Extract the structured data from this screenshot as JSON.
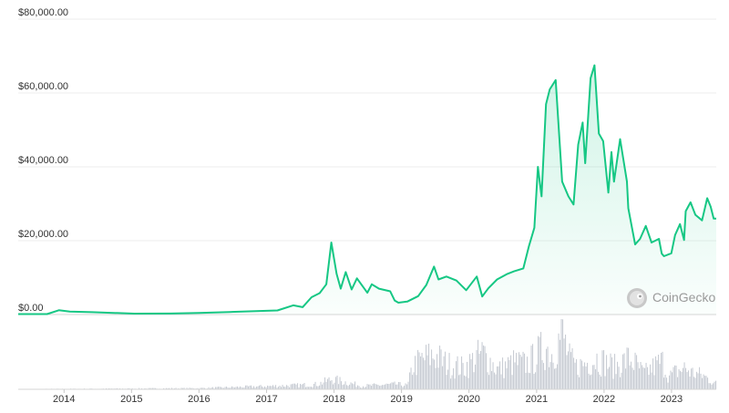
{
  "chart_data": {
    "type": "area",
    "title": "",
    "xlabel": "",
    "ylabel": "",
    "ylim": [
      0,
      80000
    ],
    "xlim": [
      "2013-04-28",
      "2023-08-31"
    ],
    "y_ticks": [
      {
        "value": 0,
        "label": "$0.00"
      },
      {
        "value": 20000,
        "label": "$20,000.00"
      },
      {
        "value": 40000,
        "label": "$40,000.00"
      },
      {
        "value": 60000,
        "label": "$60,000.00"
      },
      {
        "value": 80000,
        "label": "$80,000.00"
      }
    ],
    "x_ticks": [
      "2014",
      "2015",
      "2016",
      "2017",
      "2018",
      "2019",
      "2020",
      "2021",
      "2022",
      "2023"
    ],
    "grid": "horizontal",
    "legend": "none",
    "colors": {
      "line": "#16c784",
      "fill": "#16c784",
      "volume": "#c9cdd4",
      "grid": "#eeeeee"
    },
    "series": [
      {
        "x": [
          "2013-04-28",
          "2013-10-01",
          "2013-12-04",
          "2014-02-01",
          "2014-06-01",
          "2015-01-15",
          "2015-08-01",
          "2016-01-01",
          "2016-06-15",
          "2017-01-01",
          "2017-03-01",
          "2017-05-25",
          "2017-07-15",
          "2017-09-01",
          "2017-10-15",
          "2017-11-20",
          "2017-12-17",
          "2018-01-15",
          "2018-02-06",
          "2018-03-05",
          "2018-04-06",
          "2018-05-05",
          "2018-06-30",
          "2018-07-24",
          "2018-09-01",
          "2018-11-01",
          "2018-11-25",
          "2018-12-15",
          "2019-02-01",
          "2019-04-01",
          "2019-05-15",
          "2019-06-26",
          "2019-07-20",
          "2019-09-01",
          "2019-10-25",
          "2019-12-17",
          "2020-02-12",
          "2020-03-13",
          "2020-04-15",
          "2020-06-01",
          "2020-07-27",
          "2020-09-01",
          "2020-10-21",
          "2020-11-20",
          "2020-12-20",
          "2021-01-08",
          "2021-01-28",
          "2021-02-21",
          "2021-03-13",
          "2021-04-14",
          "2021-05-19",
          "2021-06-22",
          "2021-07-20",
          "2021-08-14",
          "2021-09-07",
          "2021-09-21",
          "2021-10-20",
          "2021-11-10",
          "2021-12-04",
          "2021-12-27",
          "2022-01-24",
          "2022-02-10",
          "2022-02-24",
          "2022-03-29",
          "2022-05-05",
          "2022-05-12",
          "2022-06-18",
          "2022-07-15",
          "2022-08-15",
          "2022-09-15",
          "2022-10-25",
          "2022-11-09",
          "2022-11-21",
          "2022-12-31",
          "2023-01-20",
          "2023-02-16",
          "2023-03-10",
          "2023-03-19",
          "2023-04-14",
          "2023-05-10",
          "2023-06-15",
          "2023-07-13",
          "2023-08-01",
          "2023-08-17",
          "2023-08-31"
        ],
        "values": [
          135,
          120,
          1150,
          800,
          650,
          250,
          280,
          430,
          700,
          1000,
          1100,
          2500,
          2000,
          4700,
          5800,
          8200,
          19500,
          11000,
          7000,
          11500,
          6800,
          9800,
          5900,
          8200,
          7000,
          6300,
          3800,
          3200,
          3500,
          5000,
          8000,
          13000,
          9500,
          10300,
          9200,
          6600,
          10300,
          4900,
          7100,
          9500,
          11000,
          11700,
          12500,
          18500,
          23500,
          40000,
          32000,
          57000,
          61000,
          63500,
          36000,
          32000,
          29800,
          46000,
          52000,
          41000,
          64000,
          67500,
          49000,
          47000,
          33000,
          44000,
          36000,
          47500,
          36000,
          28800,
          19000,
          20500,
          24000,
          19500,
          20500,
          16500,
          15800,
          16600,
          21500,
          24500,
          20200,
          28000,
          30400,
          27000,
          25500,
          31500,
          29200,
          26000,
          26000
        ]
      }
    ],
    "volume": {
      "x": [
        "2013-04-28",
        "2014-06-01",
        "2016-01-01",
        "2017-06-01",
        "2017-10-01",
        "2017-12-17",
        "2018-06-01",
        "2018-12-01",
        "2019-02-01",
        "2019-03-01",
        "2019-05-01",
        "2019-06-26",
        "2019-09-01",
        "2019-12-01",
        "2020-03-13",
        "2020-06-01",
        "2020-09-01",
        "2020-11-01",
        "2020-12-15",
        "2021-01-11",
        "2021-02-22",
        "2021-03-15",
        "2021-05-19",
        "2021-06-22",
        "2021-08-01",
        "2021-10-20",
        "2021-11-20",
        "2022-01-24",
        "2022-03-01",
        "2022-05-12",
        "2022-06-18",
        "2022-08-01",
        "2022-11-09",
        "2022-12-15",
        "2023-01-15",
        "2023-03-13",
        "2023-04-15",
        "2023-06-15",
        "2023-08-17",
        "2023-08-31"
      ],
      "values": [
        0.5,
        1,
        2,
        7,
        9,
        18,
        6,
        9,
        7,
        42,
        55,
        60,
        45,
        38,
        65,
        35,
        48,
        45,
        55,
        65,
        75,
        60,
        100,
        55,
        40,
        50,
        55,
        45,
        40,
        55,
        45,
        28,
        50,
        22,
        30,
        38,
        30,
        25,
        12,
        10
      ]
    }
  },
  "watermark": {
    "text": "CoinGecko",
    "icon": "coingecko-logo-icon"
  }
}
